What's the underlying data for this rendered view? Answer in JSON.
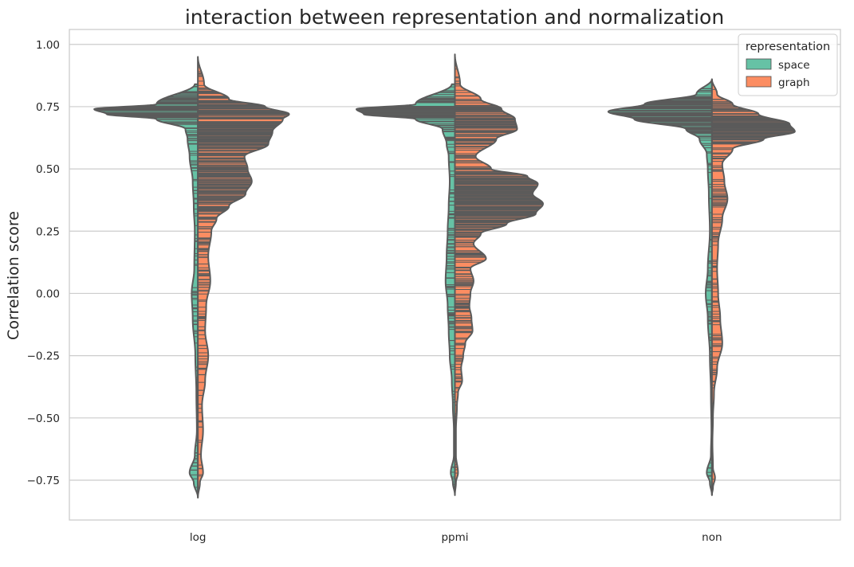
{
  "chart_data": {
    "type": "violin",
    "title": "interaction between representation and normalization",
    "xlabel": "",
    "ylabel": "Correlation score",
    "ylim": [
      -0.91,
      1.06
    ],
    "yticks": [
      1.0,
      0.75,
      0.5,
      0.25,
      0.0,
      -0.25,
      -0.5,
      -0.75
    ],
    "ytick_labels": [
      "1.00",
      "0.75",
      "0.50",
      "0.25",
      "0.00",
      "−0.25",
      "−0.50",
      "−0.75"
    ],
    "grid": "horizontal",
    "legend_position": "top-right",
    "legend_title": "representation",
    "categories": [
      "log",
      "ppmi",
      "non"
    ],
    "series": [
      {
        "name": "space",
        "color": "#66c2a5",
        "side": "left"
      },
      {
        "name": "graph",
        "color": "#fc8d62",
        "side": "right"
      }
    ],
    "violins": [
      {
        "category": "log",
        "space": {
          "y": [
            0.84,
            0.76,
            0.74,
            0.72,
            0.7,
            0.66,
            0.62,
            0.55,
            0.45,
            0.35,
            0.25,
            0.1,
            0.0,
            -0.1,
            -0.25,
            -0.4,
            -0.55,
            -0.65,
            -0.72,
            -0.76,
            -0.82
          ],
          "w": [
            0.03,
            0.4,
            1.0,
            0.88,
            0.4,
            0.12,
            0.1,
            0.08,
            0.05,
            0.04,
            0.03,
            0.035,
            0.06,
            0.05,
            0.025,
            0.015,
            0.01,
            0.03,
            0.08,
            0.04,
            0.0
          ]
        },
        "graph": {
          "y": [
            0.95,
            0.84,
            0.78,
            0.75,
            0.72,
            0.7,
            0.65,
            0.6,
            0.55,
            0.5,
            0.45,
            0.4,
            0.35,
            0.3,
            0.25,
            0.15,
            0.05,
            -0.05,
            -0.15,
            -0.25,
            -0.35,
            -0.45,
            -0.55,
            -0.65,
            -0.72,
            -0.76,
            -0.82
          ],
          "w": [
            0.0,
            0.06,
            0.3,
            0.65,
            0.88,
            0.82,
            0.72,
            0.68,
            0.45,
            0.48,
            0.52,
            0.46,
            0.3,
            0.18,
            0.13,
            0.1,
            0.12,
            0.08,
            0.07,
            0.1,
            0.07,
            0.04,
            0.05,
            0.03,
            0.05,
            0.02,
            0.0
          ]
        }
      },
      {
        "category": "ppmi",
        "space": {
          "y": [
            0.84,
            0.76,
            0.74,
            0.72,
            0.7,
            0.66,
            0.6,
            0.55,
            0.45,
            0.35,
            0.25,
            0.15,
            0.05,
            -0.05,
            -0.15,
            -0.25,
            -0.35,
            -0.45,
            -0.55,
            -0.65,
            -0.72,
            -0.76,
            -0.81
          ],
          "w": [
            0.03,
            0.38,
            0.95,
            0.88,
            0.38,
            0.12,
            0.08,
            0.06,
            0.05,
            0.06,
            0.07,
            0.08,
            0.09,
            0.07,
            0.06,
            0.05,
            0.03,
            0.02,
            0.01,
            0.01,
            0.04,
            0.02,
            0.0
          ]
        },
        "graph": {
          "y": [
            0.96,
            0.84,
            0.78,
            0.74,
            0.7,
            0.66,
            0.62,
            0.55,
            0.5,
            0.47,
            0.44,
            0.4,
            0.36,
            0.32,
            0.28,
            0.24,
            0.2,
            0.14,
            0.1,
            0.05,
            0.0,
            -0.05,
            -0.1,
            -0.15,
            -0.2,
            -0.25,
            -0.3,
            -0.35,
            -0.4,
            -0.45,
            -0.55,
            -0.65,
            -0.72,
            -0.76,
            -0.81
          ],
          "w": [
            0.0,
            0.05,
            0.25,
            0.45,
            0.58,
            0.6,
            0.4,
            0.2,
            0.35,
            0.7,
            0.8,
            0.75,
            0.85,
            0.78,
            0.5,
            0.25,
            0.18,
            0.3,
            0.15,
            0.18,
            0.15,
            0.14,
            0.16,
            0.17,
            0.1,
            0.08,
            0.06,
            0.07,
            0.03,
            0.02,
            0.01,
            0.01,
            0.03,
            0.01,
            0.0
          ]
        }
      },
      {
        "category": "non",
        "space": {
          "y": [
            0.86,
            0.8,
            0.76,
            0.73,
            0.7,
            0.66,
            0.62,
            0.56,
            0.5,
            0.4,
            0.25,
            0.1,
            0.0,
            -0.1,
            -0.25,
            -0.4,
            -0.55,
            -0.65,
            -0.72,
            -0.76,
            -0.81
          ],
          "w": [
            0.0,
            0.15,
            0.65,
            1.0,
            0.75,
            0.25,
            0.12,
            0.05,
            0.04,
            0.03,
            0.02,
            0.04,
            0.06,
            0.04,
            0.02,
            0.01,
            0.005,
            0.01,
            0.05,
            0.02,
            0.0
          ]
        },
        "graph": {
          "y": [
            0.86,
            0.8,
            0.76,
            0.72,
            0.68,
            0.65,
            0.62,
            0.58,
            0.52,
            0.45,
            0.38,
            0.3,
            0.2,
            0.1,
            0.0,
            -0.1,
            -0.2,
            -0.3,
            -0.4,
            -0.5,
            -0.6,
            -0.7,
            -0.74,
            -0.78,
            -0.81
          ],
          "w": [
            0.0,
            0.05,
            0.2,
            0.45,
            0.75,
            0.8,
            0.5,
            0.2,
            0.1,
            0.12,
            0.15,
            0.1,
            0.06,
            0.05,
            0.06,
            0.08,
            0.1,
            0.05,
            0.02,
            0.01,
            0.005,
            0.01,
            0.03,
            0.01,
            0.0
          ]
        }
      }
    ]
  }
}
